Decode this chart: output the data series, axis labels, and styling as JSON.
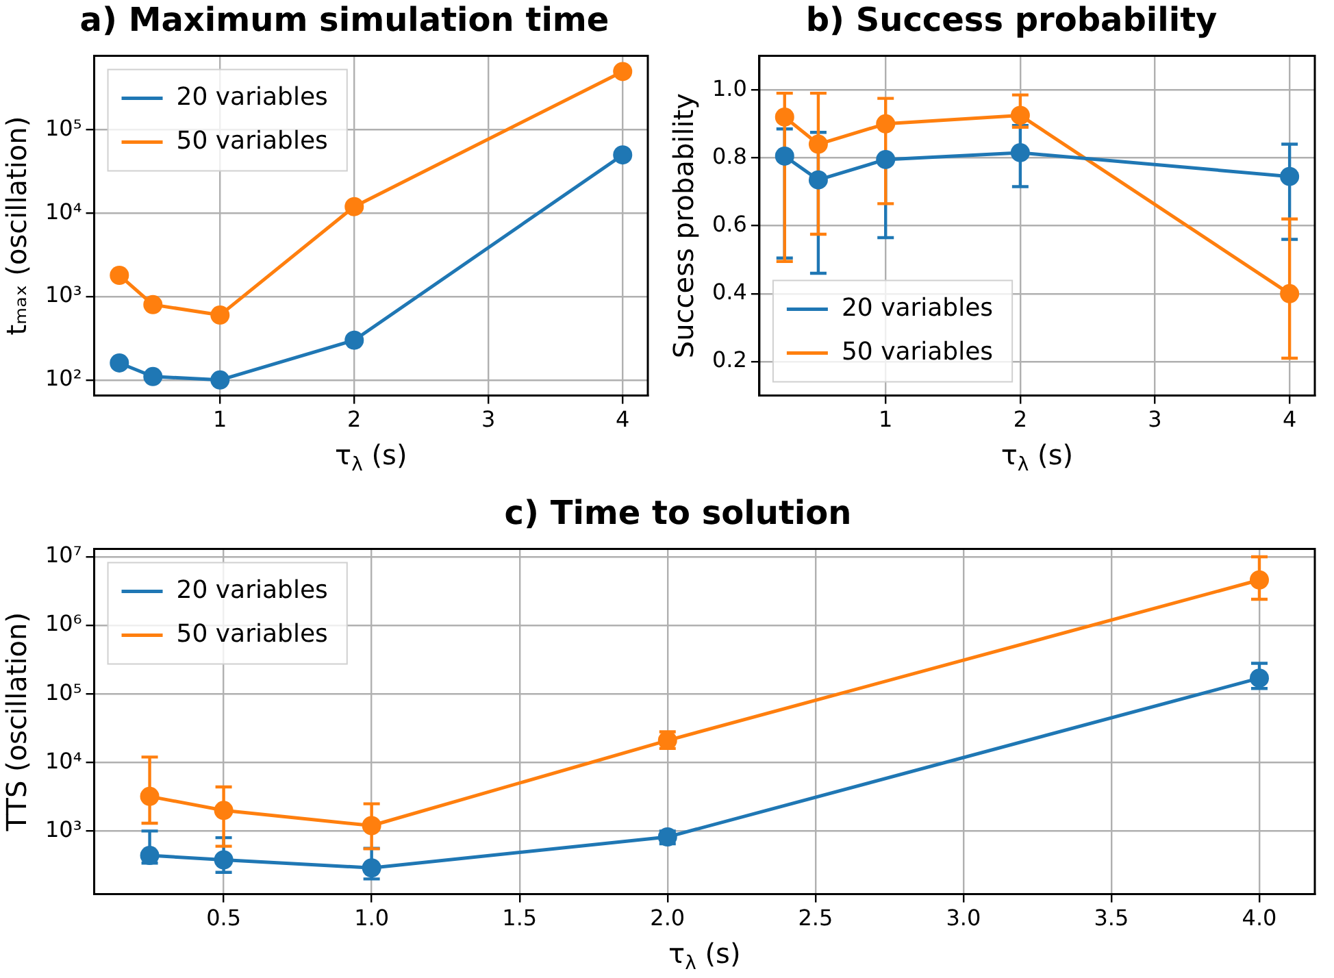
{
  "chart_data": [
    {
      "type": "line",
      "title": "a) Maximum simulation time",
      "xlabel": "τ$_{λ}$ (s)",
      "ylabel": "tₘₐₓ (oscillation)",
      "x": [
        0.25,
        0.5,
        1,
        2,
        4
      ],
      "series": [
        {
          "name": "20 variables",
          "color": "#1f77b4",
          "values": [
            160,
            110,
            100,
            300,
            50000
          ]
        },
        {
          "name": "50 variables",
          "color": "#ff7f0e",
          "values": [
            1800,
            800,
            600,
            12000,
            500000
          ]
        }
      ],
      "xlim": [
        0.0625,
        4.1875
      ],
      "xticks": [
        1,
        2,
        3,
        4
      ],
      "ylim": [
        65,
        770000
      ],
      "yticks": [
        {
          "value": 100,
          "label": "10²"
        },
        {
          "value": 1000,
          "label": "10³"
        },
        {
          "value": 10000,
          "label": "10⁴"
        },
        {
          "value": 100000,
          "label": "10⁵"
        }
      ],
      "log": "y",
      "grid": true,
      "legend": "top left",
      "marker": "circle",
      "line_style": "solid"
    },
    {
      "type": "line",
      "title": "b) Success probability",
      "xlabel": "τ$_{λ}$ (s)",
      "ylabel": "Success probability",
      "x": [
        0.25,
        0.5,
        1,
        2,
        4
      ],
      "series": [
        {
          "name": "20 variables",
          "color": "#1f77b4",
          "values": [
            0.805,
            0.735,
            0.795,
            0.815,
            0.745
          ],
          "errors": [
            [
              0.505,
              0.885
            ],
            [
              0.46,
              0.875
            ],
            [
              0.565,
              0.795
            ],
            [
              0.715,
              0.895
            ],
            [
              0.56,
              0.84
            ]
          ]
        },
        {
          "name": "50 variables",
          "color": "#ff7f0e",
          "values": [
            0.92,
            0.84,
            0.9,
            0.925,
            0.4
          ],
          "errors": [
            [
              0.495,
              0.99
            ],
            [
              0.575,
              0.99
            ],
            [
              0.665,
              0.975
            ],
            [
              0.89,
              0.985
            ],
            [
              0.21,
              0.62
            ]
          ]
        }
      ],
      "xlim": [
        0.0625,
        4.1875
      ],
      "xticks": [
        1,
        2,
        3,
        4
      ],
      "ylim": [
        0.1,
        1.1
      ],
      "yticks": [
        {
          "value": 0.2,
          "label": "0.2"
        },
        {
          "value": 0.4,
          "label": "0.4"
        },
        {
          "value": 0.6,
          "label": "0.6"
        },
        {
          "value": 0.8,
          "label": "0.8"
        },
        {
          "value": 1.0,
          "label": "1.0"
        }
      ],
      "grid": true,
      "legend": "bottom left",
      "marker": "circle",
      "line_style": "solid"
    },
    {
      "type": "line",
      "title": "c) Time to solution",
      "xlabel": "τ$_{λ}$ (s)",
      "ylabel": "TTS (oscillation)",
      "x": [
        0.25,
        0.5,
        1,
        2,
        4
      ],
      "series": [
        {
          "name": "20 variables",
          "color": "#1f77b4",
          "values": [
            440,
            380,
            290,
            820,
            170000
          ],
          "errors": [
            [
              340,
              1000
            ],
            [
              250,
              800
            ],
            [
              200,
              560
            ],
            [
              650,
              1000
            ],
            [
              120000,
              280000
            ]
          ]
        },
        {
          "name": "50 variables",
          "color": "#ff7f0e",
          "values": [
            3200,
            2000,
            1200,
            21000,
            4600000
          ],
          "errors": [
            [
              1300,
              12000
            ],
            [
              600,
              4400
            ],
            [
              550,
              2500
            ],
            [
              16000,
              28000
            ],
            [
              2400000,
              10000000
            ]
          ]
        }
      ],
      "xlim": [
        0.0625,
        4.1875
      ],
      "xticks": [
        {
          "value": 0.5,
          "label": "0.5"
        },
        {
          "value": 1,
          "label": "1.0"
        },
        {
          "value": 1.5,
          "label": "1.5"
        },
        {
          "value": 2,
          "label": "2.0"
        },
        {
          "value": 2.5,
          "label": "2.5"
        },
        {
          "value": 3,
          "label": "3.0"
        },
        {
          "value": 3.5,
          "label": "3.5"
        },
        {
          "value": 4,
          "label": "4.0"
        }
      ],
      "ylim": [
        120,
        13000000
      ],
      "yticks": [
        {
          "value": 1000,
          "label": "10³"
        },
        {
          "value": 10000,
          "label": "10⁴"
        },
        {
          "value": 100000,
          "label": "10⁵"
        },
        {
          "value": 1000000,
          "label": "10⁶"
        },
        {
          "value": 10000000,
          "label": "10⁷"
        }
      ],
      "log": "y",
      "grid": true,
      "legend": "top left",
      "marker": "circle",
      "line_style": "solid"
    }
  ]
}
